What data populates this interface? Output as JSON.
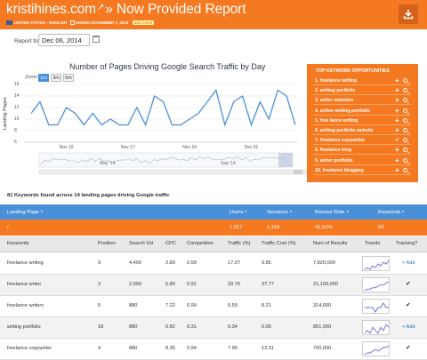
{
  "header": {
    "site": "kristihines.com",
    "arrows": "»",
    "title": "Now Provided Report",
    "locale": "UNITED STATES - ENGLISH",
    "added": "ADDED NOVEMBER 7, 2013",
    "add_tag": "ADD TAGS",
    "download_icon": "download-icon",
    "colors": {
      "header_bg": "#f47920",
      "accent_blue": "#4a90d9"
    }
  },
  "report_for": {
    "label": "Report for",
    "date": "Dec 06, 2014"
  },
  "chart_data": {
    "type": "line",
    "title": "Number of Pages Driving Google Search Traffic by Day",
    "ylabel": "Landing Pages",
    "xlabel": "",
    "x_ticks": [
      "Nov 10",
      "Nov 17",
      "Nov 24",
      "Dec 01"
    ],
    "y_ticks": [
      "16",
      "14",
      "12",
      "10",
      "8",
      "6"
    ],
    "ylim": [
      6,
      16
    ],
    "zoom_label": "Zoom",
    "zoom_options": [
      "1m",
      "3m",
      "6m"
    ],
    "zoom_selected": "1m",
    "navigator_ticks": [
      "May '14",
      "Sep '14"
    ],
    "x": [
      "Nov 6",
      "Nov 7",
      "Nov 8",
      "Nov 9",
      "Nov 10",
      "Nov 11",
      "Nov 12",
      "Nov 13",
      "Nov 14",
      "Nov 15",
      "Nov 16",
      "Nov 17",
      "Nov 18",
      "Nov 19",
      "Nov 20",
      "Nov 21",
      "Nov 22",
      "Nov 23",
      "Nov 24",
      "Nov 25",
      "Nov 26",
      "Nov 27",
      "Nov 28",
      "Nov 29",
      "Nov 30",
      "Dec 01",
      "Dec 02",
      "Dec 03",
      "Dec 04",
      "Dec 05",
      "Dec 06"
    ],
    "series": [
      {
        "values": [
          11,
          13,
          9,
          9,
          12,
          11,
          9,
          11,
          9,
          10,
          9,
          9,
          12,
          9,
          14,
          13,
          9,
          9,
          10,
          11,
          13,
          15,
          9,
          13,
          14,
          9,
          13,
          10,
          15,
          14,
          9
        ]
      }
    ],
    "line_color": "#4a90d9",
    "grid": true
  },
  "opportunities": {
    "title": "TOP KEYWORD OPPORTUNITIES",
    "items": [
      {
        "label": "1. freelance writing",
        "icon": "plus-icon"
      },
      {
        "label": "2. writing portfolio",
        "icon": "plus-icon"
      },
      {
        "label": "3. writer websites",
        "icon": "plus-icon"
      },
      {
        "label": "4. online writing portfolio",
        "icon": "plus-icon"
      },
      {
        "label": "5. free lance writing",
        "icon": "plus-icon"
      },
      {
        "label": "6. writing portfolio website",
        "icon": "plus-icon"
      },
      {
        "label": "7. freelance copywriter",
        "icon": "check-icon"
      },
      {
        "label": "8. freelance blog",
        "icon": "plus-icon"
      },
      {
        "label": "9. writer portfolio",
        "icon": "plus-icon"
      },
      {
        "label": "10. freelance blogging",
        "icon": "plus-icon"
      }
    ]
  },
  "summary": "81 Keywords found across 14 landing pages driving Google traffic",
  "landing_table": {
    "headers": {
      "page": "Landing Page",
      "users": "Users",
      "sessions": "Sessions",
      "bounce": "Bounce Rate",
      "keywords": "Keywords"
    },
    "row": {
      "page": "/",
      "users": "1,017",
      "sessions": "1,166",
      "bounce": "41.51%",
      "keywords": "60"
    }
  },
  "keyword_table": {
    "headers": [
      "Keywords",
      "Position",
      "Search Vol",
      "CPC",
      "Competition",
      "Traffic (%)",
      "Traffic Cost (%)",
      "Num of Results",
      "Trends",
      "Tracking?"
    ],
    "add_label": "+ Add",
    "check_label": "✔",
    "rows": [
      {
        "kw": "freelance writing",
        "pos": "9",
        "vol": "4,400",
        "cpc": "2.89",
        "comp": "0.59",
        "traffic": "17.07",
        "cost": "9.85",
        "results": "7,820,000",
        "tracking": "add",
        "trend": [
          3,
          4,
          3,
          5,
          4,
          6,
          5,
          7,
          6,
          8
        ]
      },
      {
        "kw": "freelance writer",
        "pos": "3",
        "vol": "2,900",
        "cpc": "5.80",
        "comp": "0.91",
        "traffic": "33.76",
        "cost": "37.77",
        "results": "21,100,000",
        "tracking": "check",
        "trend": [
          2,
          3,
          3,
          4,
          4,
          5,
          6,
          6,
          7,
          8
        ]
      },
      {
        "kw": "freelance writers",
        "pos": "5",
        "vol": "880",
        "cpc": "7.22",
        "comp": "0.99",
        "traffic": "5.59",
        "cost": "8.21",
        "results": "314,000",
        "tracking": "check",
        "trend": [
          5,
          5,
          5,
          5,
          4,
          5,
          5,
          6,
          5,
          5
        ]
      },
      {
        "kw": "writing portfolio",
        "pos": "18",
        "vol": "880",
        "cpc": "0.82",
        "comp": "0.31",
        "traffic": "0.34",
        "cost": "0.05",
        "results": "851,000",
        "tracking": "add",
        "trend": [
          4,
          5,
          4,
          6,
          5,
          4,
          6,
          5,
          7,
          6
        ]
      },
      {
        "kw": "freelance copywriter",
        "pos": "4",
        "vol": "880",
        "cpc": "8.35",
        "comp": "0.94",
        "traffic": "7.96",
        "cost": "13.31",
        "results": "700,000",
        "tracking": "check",
        "trend": [
          3,
          4,
          4,
          5,
          6,
          5,
          6,
          7,
          7,
          8
        ]
      }
    ]
  }
}
